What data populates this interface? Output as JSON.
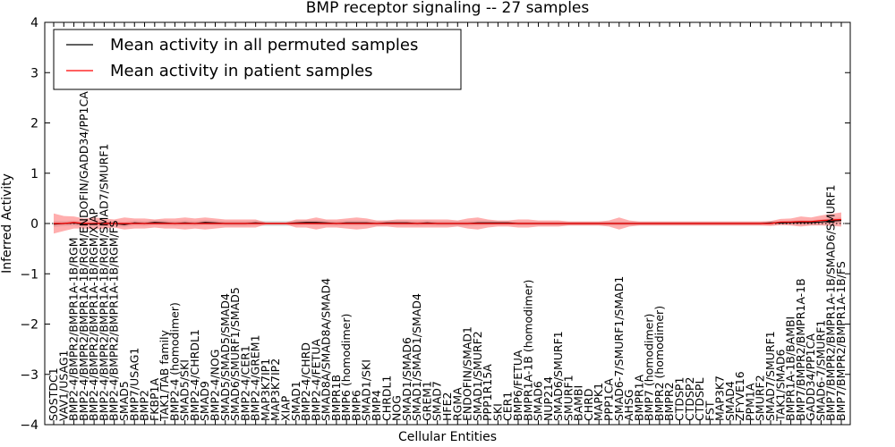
{
  "chart_data": {
    "type": "line",
    "title": "BMP receptor signaling -- 27 samples",
    "xlabel": "Cellular Entities",
    "ylabel": "Inferred Activity",
    "ylim": [
      -4,
      4
    ],
    "yticks": [
      "−4",
      "−3",
      "−2",
      "−1",
      "0",
      "1",
      "2",
      "3",
      "4"
    ],
    "ytick_values": [
      -4,
      -3,
      -2,
      -1,
      0,
      1,
      2,
      3,
      4
    ],
    "legend_position": "top-left",
    "categories": [
      "SOSTDC1",
      "VAV1/USAG1",
      "BMP2-4/BMPR2/BMPR1A-1B/RGM",
      "BMP2-4/BMPR2/BMPR1A-1B/RGM/ENDOFIN/GADD34/PP1CA",
      "BMP2-4/BMPR2/BMPR1A-1B/RGM/XIAP",
      "BMP2-4/BMPR2/BMPR1A-1B/RGM/SMAD7/SMURF1",
      "BMP2-4/BMPR2/BMPR1A-1B/RGM/FS",
      "SMAD5",
      "BMP7/USAG1",
      "BMP2",
      "FKBP1A",
      "TAK1/TAB family",
      "BMP2-4 (homodimer)",
      "SMAD5/SKI",
      "BMP2-4/CHRDL1",
      "SMAD9",
      "BMP2-4/NOG",
      "SMAD5/SMAD5/SMAD4",
      "SMAD6/SMURF1/SMAD5",
      "BMP2-4/CER1",
      "BMP2-4/GREM1",
      "MAP3K7IP1",
      "MAP3K7IP2",
      "XIAP",
      "SMAD1",
      "BMP2-4/CHRD",
      "BMP2-4/FETUA",
      "SMAD8A/SMAD8A/SMAD4",
      "BMPR1B",
      "BMP6 (homodimer)",
      "BMP6",
      "SMAD1/SKI",
      "BMP4",
      "CHRDL1",
      "NOG",
      "SMAD1/SMAD6",
      "SMAD1/SMAD1/SMAD4",
      "GREM1",
      "SMAD7",
      "HFE2",
      "RGMA",
      "ENDOFIN/SMAD1",
      "SMAD1/SMURF2",
      "PPP1R15A",
      "SKI",
      "CER1",
      "BMP6/FETUA",
      "BMPR1A-1B (homodimer)",
      "SMAD6",
      "NUP214",
      "SMAD6/SMURF1",
      "SMURF1",
      "BAMBI",
      "CHRD",
      "MAPK1",
      "PPP1CA",
      "SMAD6-7/SMURF1/SMAD1",
      "AHSG",
      "BMPR1A",
      "BMP7 (homodimer)",
      "BMPR2 (homodimer)",
      "BMPR2",
      "CTDSP1",
      "CTDSP2",
      "CTDSPL",
      "FST",
      "MAP3K7",
      "SMAD4",
      "ZFYVE16",
      "PPM1A",
      "SMURF2",
      "SMAD7/SMURF1",
      "TAK1/SMAD6",
      "BMPR1A-1B/BAMBI",
      "BMP7/BMPR2/BMPR1A-1B",
      "GADD34/PP1CA",
      "SMAD6-7/SMURF1",
      "BMP7/BMPR2/BMPR1A-1B/SMAD6/SMURF1",
      "BMP7/BMPR2/BMPR1A-1B/FS"
    ],
    "series": [
      {
        "name": "Mean activity in all permuted samples",
        "color": "#000000",
        "values": [
          -0.01,
          0.0,
          0.01,
          -0.01,
          0.0,
          0.01,
          0.0,
          -0.02,
          0.01,
          0.0,
          0.02,
          0.01,
          0.0,
          0.01,
          0.0,
          0.02,
          0.01,
          0.0,
          0.0,
          0.0,
          0.01,
          0.0,
          0.0,
          0.0,
          0.01,
          0.02,
          0.02,
          0.01,
          0.0,
          0.01,
          0.01,
          0.01,
          0.0,
          0.01,
          0.01,
          0.01,
          0.0,
          0.01,
          0.0,
          0.0,
          0.0,
          0.0,
          0.01,
          0.01,
          0.01,
          0.01,
          0.0,
          0.0,
          0.0,
          0.0,
          0.0,
          0.0,
          0.0,
          0.0,
          0.0,
          0.0,
          0.0,
          0.0,
          0.0,
          0.0,
          0.0,
          0.0,
          0.0,
          0.0,
          0.0,
          0.0,
          0.0,
          0.0,
          0.0,
          0.0,
          0.0,
          0.01,
          0.01,
          0.02,
          0.02,
          0.02,
          0.03,
          0.05,
          0.06
        ]
      },
      {
        "name": "Mean activity in patient samples",
        "color": "#ff0000",
        "values": [
          0.0,
          0.0,
          0.02,
          0.0,
          0.0,
          0.0,
          0.0,
          0.0,
          0.0,
          0.0,
          0.0,
          0.0,
          0.0,
          0.0,
          0.0,
          0.0,
          0.0,
          0.0,
          0.0,
          0.0,
          0.0,
          0.0,
          0.0,
          0.0,
          0.0,
          0.0,
          0.0,
          0.0,
          0.0,
          0.0,
          0.0,
          0.0,
          0.0,
          0.0,
          0.0,
          0.0,
          0.0,
          0.0,
          0.0,
          0.0,
          0.0,
          0.0,
          0.0,
          0.0,
          0.0,
          0.0,
          0.0,
          0.0,
          0.0,
          0.0,
          0.0,
          0.0,
          0.0,
          0.0,
          0.0,
          0.0,
          0.0,
          0.0,
          0.0,
          0.0,
          0.0,
          0.0,
          0.0,
          0.0,
          0.0,
          0.0,
          0.0,
          0.0,
          0.0,
          0.0,
          0.0,
          0.0,
          0.03,
          0.03,
          0.04,
          0.04,
          0.06,
          0.07,
          0.08
        ]
      }
    ],
    "bands": [
      {
        "name": "permuted samples spread",
        "color": "#aaaaaa",
        "half_width": [
          0.06,
          0.05,
          0.05,
          0.05,
          0.05,
          0.05,
          0.05,
          0.05,
          0.05,
          0.05,
          0.05,
          0.05,
          0.05,
          0.05,
          0.05,
          0.05,
          0.05,
          0.05,
          0.05,
          0.05,
          0.05,
          0.05,
          0.05,
          0.05,
          0.05,
          0.05,
          0.05,
          0.05,
          0.05,
          0.05,
          0.05,
          0.05,
          0.05,
          0.05,
          0.05,
          0.05,
          0.05,
          0.05,
          0.05,
          0.05,
          0.05,
          0.05,
          0.05,
          0.05,
          0.04,
          0.04,
          0.04,
          0.04,
          0.04,
          0.04,
          0.04,
          0.04,
          0.04,
          0.04,
          0.04,
          0.04,
          0.04,
          0.04,
          0.04,
          0.04,
          0.04,
          0.04,
          0.04,
          0.04,
          0.04,
          0.04,
          0.04,
          0.04,
          0.04,
          0.04,
          0.04,
          0.04,
          0.04,
          0.04,
          0.05,
          0.05,
          0.05,
          0.05,
          0.06
        ]
      },
      {
        "name": "patient samples spread",
        "color": "#ff6b6b",
        "half_width": [
          0.2,
          0.15,
          0.12,
          0.1,
          0.12,
          0.1,
          0.08,
          0.12,
          0.1,
          0.1,
          0.08,
          0.1,
          0.1,
          0.12,
          0.1,
          0.12,
          0.1,
          0.08,
          0.08,
          0.08,
          0.08,
          0.02,
          0.02,
          0.02,
          0.08,
          0.08,
          0.12,
          0.08,
          0.08,
          0.1,
          0.12,
          0.1,
          0.06,
          0.06,
          0.08,
          0.08,
          0.08,
          0.08,
          0.08,
          0.08,
          0.06,
          0.1,
          0.12,
          0.08,
          0.06,
          0.06,
          0.08,
          0.08,
          0.06,
          0.06,
          0.06,
          0.04,
          0.04,
          0.04,
          0.04,
          0.06,
          0.12,
          0.06,
          0.04,
          0.04,
          0.04,
          0.04,
          0.04,
          0.04,
          0.04,
          0.04,
          0.04,
          0.04,
          0.04,
          0.04,
          0.04,
          0.05,
          0.06,
          0.07,
          0.1,
          0.08,
          0.1,
          0.12,
          0.14
        ]
      }
    ]
  }
}
